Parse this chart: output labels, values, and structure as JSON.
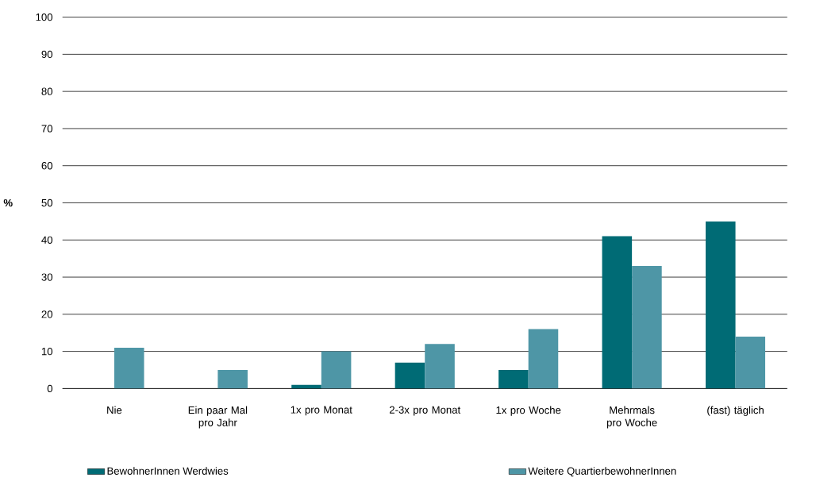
{
  "chart_data": {
    "type": "bar",
    "ylabel": "%",
    "categories": [
      "Nie",
      "Ein paar Mal pro Jahr",
      "1x pro Monat",
      "2-3x pro Monat",
      "1x pro Woche",
      "Mehrmals pro Woche",
      "(fast) täglich"
    ],
    "series": [
      {
        "name": "BewohnerInnen Werdwies",
        "color": "#006b75",
        "values": [
          0,
          0,
          1,
          7,
          5,
          41,
          45
        ]
      },
      {
        "name": "Weitere QuartierbewohnerInnen",
        "color": "#4e96a6",
        "values": [
          11,
          5,
          10,
          12,
          16,
          33,
          14
        ]
      }
    ],
    "ylim": [
      0,
      100
    ],
    "yticks": [
      0,
      10,
      20,
      30,
      40,
      50,
      60,
      70,
      80,
      90,
      100
    ],
    "grid": "y",
    "legend": "bottom"
  }
}
